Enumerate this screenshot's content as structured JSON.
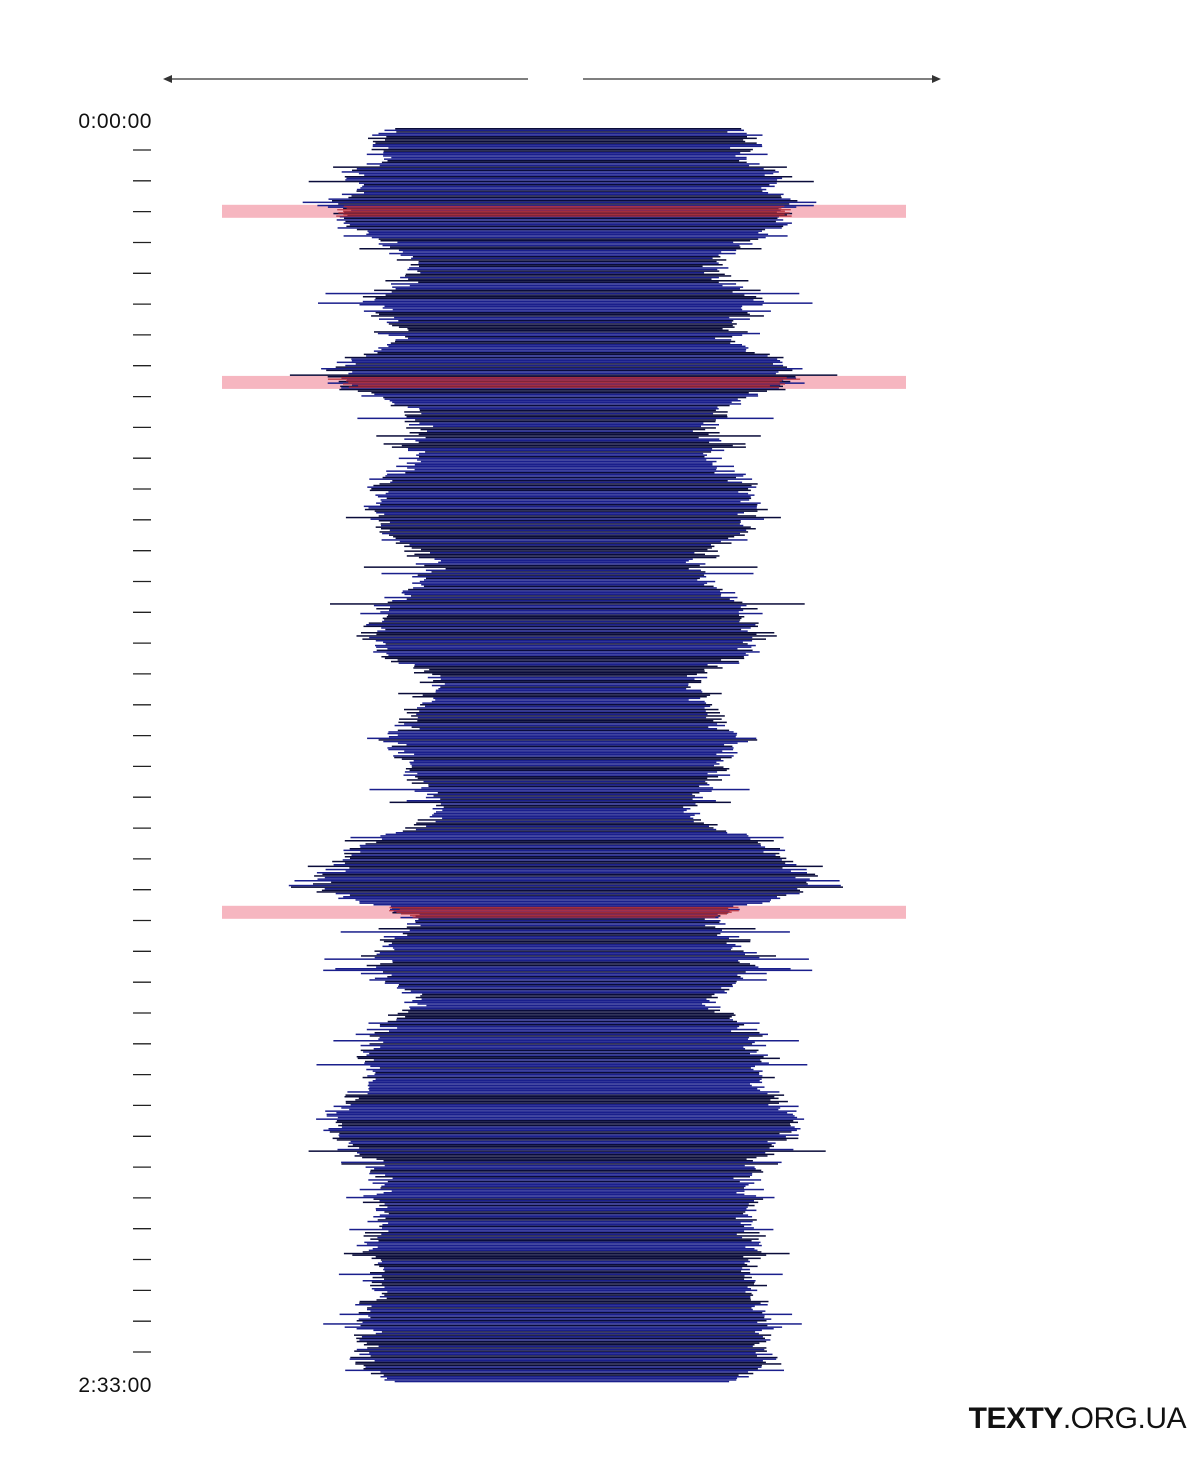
{
  "chart_data": {
    "type": "bar",
    "orientation": "horizontal-symmetric",
    "y_axis": {
      "start_label": "0:00:00",
      "end_label": "2:33:00",
      "range_seconds": [
        0,
        9180
      ],
      "tick_count": 40
    },
    "bar_color": "#1a1f8c",
    "dark_color": "#0a0c3a",
    "highlight_color": "#f6b6c0",
    "highlight_bar_color": "#b8303a",
    "highlights": [
      {
        "fraction": 0.066
      },
      {
        "fraction": 0.2025
      },
      {
        "fraction": 0.625
      }
    ],
    "profile": [
      [
        0.0,
        0.57
      ],
      [
        0.01,
        0.64
      ],
      [
        0.02,
        0.58
      ],
      [
        0.03,
        0.66
      ],
      [
        0.04,
        0.72
      ],
      [
        0.05,
        0.7
      ],
      [
        0.06,
        0.76
      ],
      [
        0.07,
        0.74
      ],
      [
        0.08,
        0.7
      ],
      [
        0.09,
        0.6
      ],
      [
        0.1,
        0.54
      ],
      [
        0.11,
        0.5
      ],
      [
        0.12,
        0.52
      ],
      [
        0.13,
        0.6
      ],
      [
        0.14,
        0.64
      ],
      [
        0.15,
        0.58
      ],
      [
        0.16,
        0.52
      ],
      [
        0.17,
        0.54
      ],
      [
        0.18,
        0.68
      ],
      [
        0.19,
        0.74
      ],
      [
        0.2,
        0.76
      ],
      [
        0.21,
        0.66
      ],
      [
        0.22,
        0.55
      ],
      [
        0.23,
        0.5
      ],
      [
        0.24,
        0.48
      ],
      [
        0.25,
        0.49
      ],
      [
        0.26,
        0.5
      ],
      [
        0.27,
        0.53
      ],
      [
        0.28,
        0.58
      ],
      [
        0.29,
        0.62
      ],
      [
        0.3,
        0.64
      ],
      [
        0.31,
        0.62
      ],
      [
        0.32,
        0.6
      ],
      [
        0.33,
        0.54
      ],
      [
        0.34,
        0.46
      ],
      [
        0.35,
        0.44
      ],
      [
        0.36,
        0.46
      ],
      [
        0.37,
        0.54
      ],
      [
        0.38,
        0.6
      ],
      [
        0.39,
        0.62
      ],
      [
        0.4,
        0.62
      ],
      [
        0.41,
        0.64
      ],
      [
        0.42,
        0.6
      ],
      [
        0.43,
        0.5
      ],
      [
        0.44,
        0.42
      ],
      [
        0.45,
        0.44
      ],
      [
        0.46,
        0.48
      ],
      [
        0.47,
        0.5
      ],
      [
        0.48,
        0.54
      ],
      [
        0.49,
        0.57
      ],
      [
        0.5,
        0.54
      ],
      [
        0.51,
        0.52
      ],
      [
        0.52,
        0.5
      ],
      [
        0.53,
        0.46
      ],
      [
        0.54,
        0.4
      ],
      [
        0.55,
        0.44
      ],
      [
        0.56,
        0.54
      ],
      [
        0.57,
        0.66
      ],
      [
        0.58,
        0.72
      ],
      [
        0.59,
        0.76
      ],
      [
        0.6,
        0.82
      ],
      [
        0.61,
        0.76
      ],
      [
        0.62,
        0.6
      ],
      [
        0.63,
        0.48
      ],
      [
        0.64,
        0.54
      ],
      [
        0.65,
        0.58
      ],
      [
        0.66,
        0.6
      ],
      [
        0.67,
        0.62
      ],
      [
        0.68,
        0.6
      ],
      [
        0.69,
        0.5
      ],
      [
        0.7,
        0.48
      ],
      [
        0.71,
        0.56
      ],
      [
        0.72,
        0.6
      ],
      [
        0.73,
        0.62
      ],
      [
        0.74,
        0.66
      ],
      [
        0.75,
        0.64
      ],
      [
        0.76,
        0.66
      ],
      [
        0.77,
        0.7
      ],
      [
        0.78,
        0.74
      ],
      [
        0.79,
        0.78
      ],
      [
        0.8,
        0.76
      ],
      [
        0.81,
        0.72
      ],
      [
        0.82,
        0.66
      ],
      [
        0.83,
        0.62
      ],
      [
        0.84,
        0.6
      ],
      [
        0.85,
        0.62
      ],
      [
        0.86,
        0.64
      ],
      [
        0.87,
        0.6
      ],
      [
        0.88,
        0.62
      ],
      [
        0.89,
        0.64
      ],
      [
        0.9,
        0.62
      ],
      [
        0.91,
        0.6
      ],
      [
        0.92,
        0.62
      ],
      [
        0.93,
        0.64
      ],
      [
        0.94,
        0.66
      ],
      [
        0.95,
        0.68
      ],
      [
        0.96,
        0.66
      ],
      [
        0.97,
        0.64
      ],
      [
        0.98,
        0.68
      ],
      [
        0.99,
        0.64
      ],
      [
        1.0,
        0.58
      ]
    ]
  },
  "brand": {
    "bold": "TEXTY",
    "rest": ".ORG.UA"
  }
}
